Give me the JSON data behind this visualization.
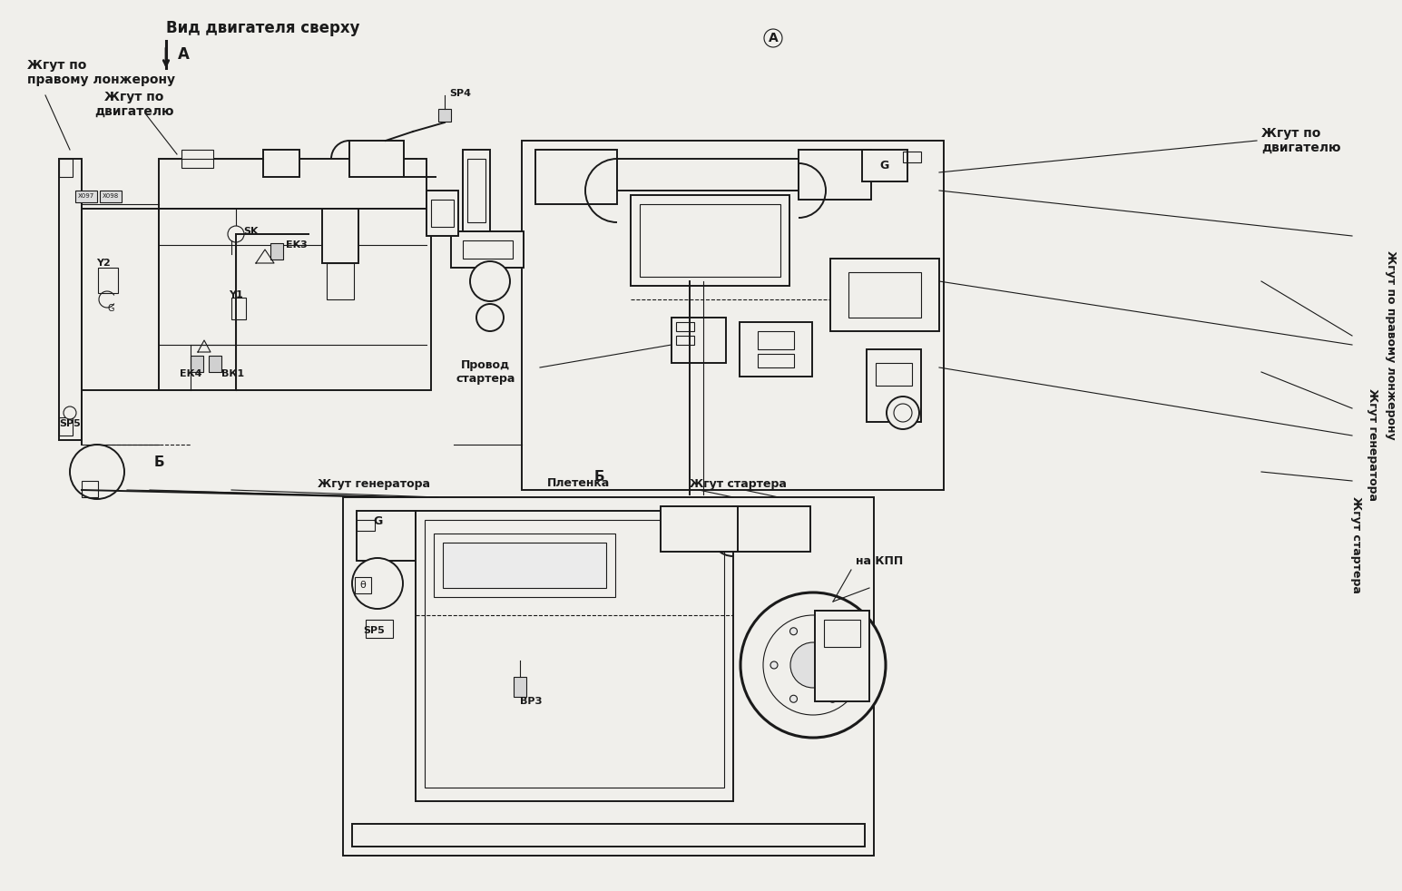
{
  "bg": "#f0efeb",
  "lc": "#1a1a1a",
  "title": "Вид двигателя сверху",
  "label_tl1": "Жгут по\nправому лонжерону",
  "label_tl2": "Жгут по\nдвигателю",
  "label_tr1": "Жгут по\nдвигателю",
  "label_tr2": "Жгут по правому лонжерону",
  "label_rgen": "Жгут генератора",
  "label_rstart": "Жгут стартера",
  "label_starter_wire": "Провод\nстартера",
  "label_bgen": "Жгут генератора",
  "label_plet": "Плетенка",
  "label_kpp": "на КПП",
  "label_b1": "Б",
  "label_b2": "Б",
  "label_A1": "А",
  "label_A2": "А"
}
